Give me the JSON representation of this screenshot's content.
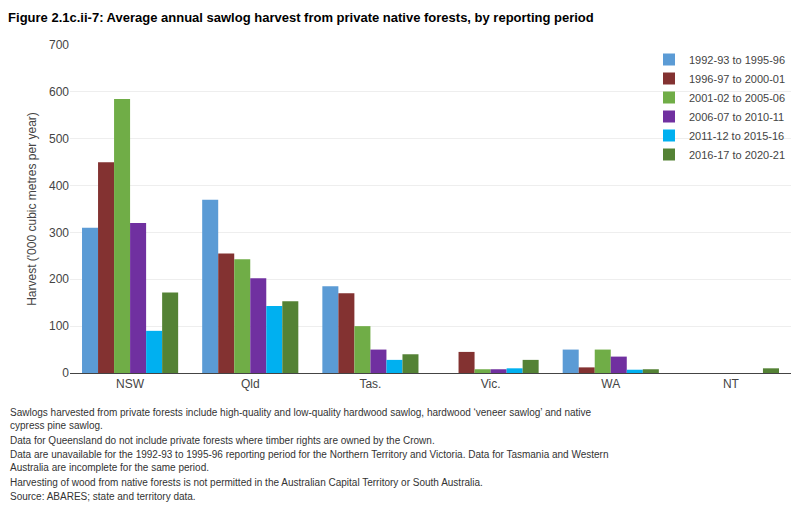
{
  "chart_data": {
    "type": "bar",
    "title": "Figure 2.1c.ii-7: Average annual sawlog harvest from private native forests, by reporting period",
    "ylabel": "Harvest ('000 cubic metres per year)",
    "categories": [
      "NSW",
      "Qld",
      "Tas.",
      "Vic.",
      "WA",
      "NT"
    ],
    "series": [
      {
        "name": "1992-93 to 1995-96",
        "color": "#5B9BD5",
        "values": [
          310,
          370,
          185,
          null,
          50,
          null
        ]
      },
      {
        "name": "1996-97 to 2000-01",
        "color": "#833231",
        "values": [
          450,
          255,
          170,
          45,
          12,
          null
        ]
      },
      {
        "name": "2001-02 to 2005-06",
        "color": "#70AD47",
        "values": [
          585,
          243,
          100,
          8,
          50,
          null
        ]
      },
      {
        "name": "2006-07 to 2010-11",
        "color": "#7030A0",
        "values": [
          320,
          202,
          50,
          8,
          35,
          null
        ]
      },
      {
        "name": "2011-12 to 2015-16",
        "color": "#00B0F0",
        "values": [
          90,
          143,
          28,
          10,
          7,
          null
        ]
      },
      {
        "name": "2016-17 to 2020-21",
        "color": "#548235",
        "values": [
          172,
          153,
          40,
          28,
          8,
          10
        ]
      }
    ],
    "ylim": [
      0,
      700
    ],
    "yticks": [
      0,
      100,
      200,
      300,
      400,
      500,
      600,
      700
    ],
    "grid": true,
    "legend": "upper right",
    "annotations": [
      "Sawlogs harvested from private forests include high-quality and low-quality hardwood sawlog, hardwood ‘veneer sawlog’ and native cypress pine sawlog.",
      "Data for Queensland do not include private forests where timber rights are owned by the Crown.",
      "Data are unavailable for the 1992-93 to 1995-96 reporting period for the Northern Territory and Victoria. Data for Tasmania and Western Australia are incomplete for the same period.",
      "Harvesting of wood from native forests is not permitted in the Australian Capital Territory or South Australia.",
      "Source: ABARES; state and territory data."
    ]
  }
}
